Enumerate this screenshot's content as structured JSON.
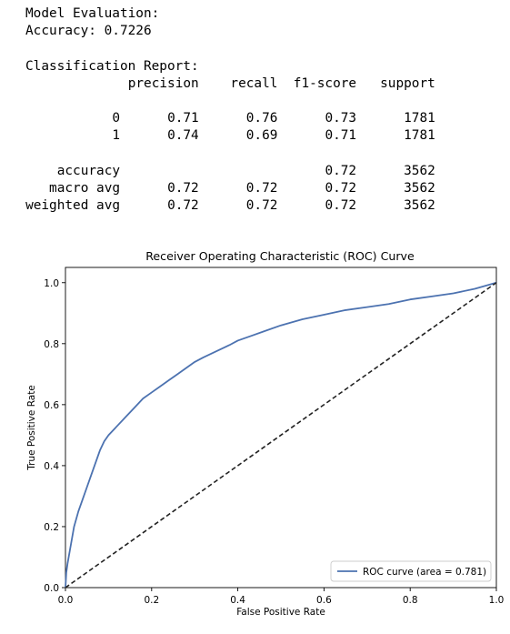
{
  "console": {
    "eval_heading": "Model Evaluation:",
    "accuracy_line": "Accuracy: 0.7226",
    "report_heading": "Classification Report:",
    "report": {
      "columns": [
        "precision",
        "recall",
        "f1-score",
        "support"
      ],
      "class_rows": [
        {
          "label": "0",
          "precision": "0.71",
          "recall": "0.76",
          "f1": "0.73",
          "support": "1781"
        },
        {
          "label": "1",
          "precision": "0.74",
          "recall": "0.69",
          "f1": "0.71",
          "support": "1781"
        }
      ],
      "summary_rows": [
        {
          "label": "accuracy",
          "precision": "",
          "recall": "",
          "f1": "0.72",
          "support": "3562"
        },
        {
          "label": "macro avg",
          "precision": "0.72",
          "recall": "0.72",
          "f1": "0.72",
          "support": "3562"
        },
        {
          "label": "weighted avg",
          "precision": "0.72",
          "recall": "0.72",
          "f1": "0.72",
          "support": "3562"
        }
      ]
    }
  },
  "chart_data": {
    "type": "line",
    "title": "Receiver Operating Characteristic (ROC) Curve",
    "xlabel": "False Positive Rate",
    "ylabel": "True Positive Rate",
    "xlim": [
      0.0,
      1.0
    ],
    "ylim": [
      0.0,
      1.05
    ],
    "xticks": [
      "0.0",
      "0.2",
      "0.4",
      "0.6",
      "0.8",
      "1.0"
    ],
    "yticks": [
      "0.0",
      "0.2",
      "0.4",
      "0.6",
      "0.8",
      "1.0"
    ],
    "grid": false,
    "legend": {
      "position": "lower right",
      "entries": [
        "ROC curve (area = 0.781)"
      ]
    },
    "series": [
      {
        "name": "ROC curve (area = 0.781)",
        "color": "#4c72b0",
        "style": "solid",
        "x": [
          0.0,
          0.002,
          0.005,
          0.01,
          0.015,
          0.02,
          0.03,
          0.04,
          0.05,
          0.06,
          0.07,
          0.08,
          0.09,
          0.1,
          0.12,
          0.14,
          0.16,
          0.18,
          0.2,
          0.22,
          0.24,
          0.26,
          0.28,
          0.3,
          0.32,
          0.35,
          0.38,
          0.4,
          0.43,
          0.46,
          0.5,
          0.55,
          0.6,
          0.65,
          0.7,
          0.75,
          0.8,
          0.85,
          0.9,
          0.95,
          1.0
        ],
        "y": [
          0.0,
          0.05,
          0.08,
          0.12,
          0.16,
          0.2,
          0.25,
          0.29,
          0.33,
          0.37,
          0.41,
          0.45,
          0.48,
          0.5,
          0.53,
          0.56,
          0.59,
          0.62,
          0.64,
          0.66,
          0.68,
          0.7,
          0.72,
          0.74,
          0.755,
          0.775,
          0.795,
          0.81,
          0.825,
          0.84,
          0.86,
          0.88,
          0.895,
          0.91,
          0.92,
          0.93,
          0.945,
          0.955,
          0.965,
          0.98,
          1.0
        ]
      },
      {
        "name": "",
        "color": "#222222",
        "style": "dashed",
        "x": [
          0.0,
          1.0
        ],
        "y": [
          0.0,
          1.0
        ]
      }
    ]
  }
}
